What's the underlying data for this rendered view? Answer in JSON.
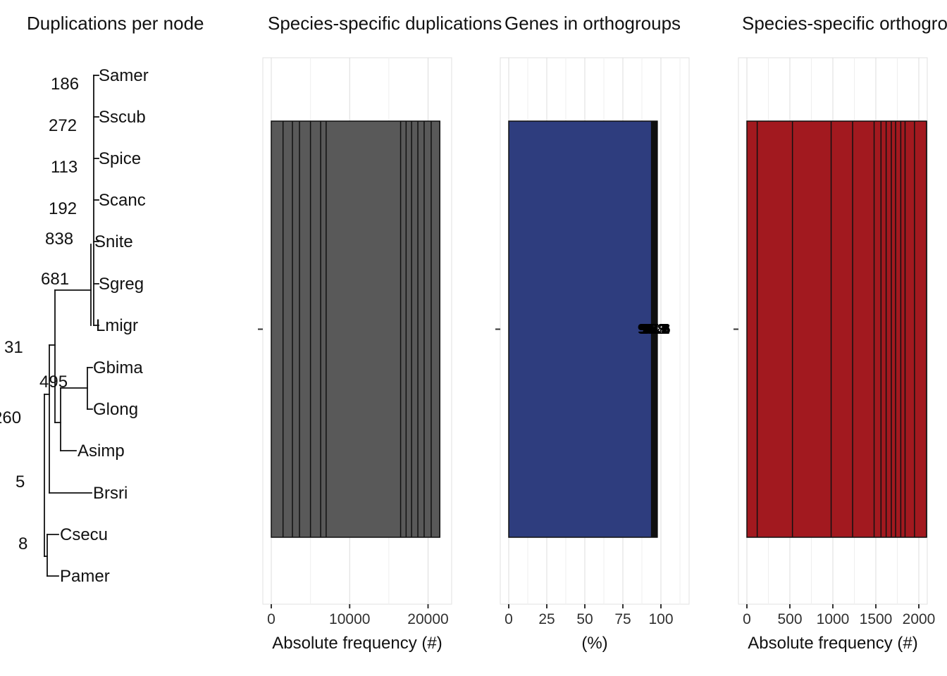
{
  "titles": [
    "Duplications per node",
    "Species-specific duplications",
    "Genes in orthogroups",
    "Species-specific orthogroups"
  ],
  "tree": {
    "species": [
      "Samer",
      "Sscub",
      "Spice",
      "Scanc",
      "Snite",
      "Sgreg",
      "Lmigr",
      "Gbima",
      "Glong",
      "Asimp",
      "Brsri",
      "Csecu",
      "Pamer"
    ],
    "node_labels": [
      "186",
      "272",
      "113",
      "192",
      "838",
      "681",
      "31",
      "495",
      "260",
      "5",
      "8"
    ]
  },
  "chart_data": [
    {
      "type": "tree",
      "title": "Duplications per node",
      "tips": [
        "Samer",
        "Sscub",
        "Spice",
        "Scanc",
        "Snite",
        "Sgreg",
        "Lmigr",
        "Gbima",
        "Glong",
        "Asimp",
        "Brsri",
        "Csecu",
        "Pamer"
      ],
      "node_values": [
        186,
        272,
        113,
        192,
        838,
        681,
        31,
        495,
        260,
        5,
        8
      ]
    },
    {
      "type": "bar",
      "orientation": "horizontal",
      "title": "Species-specific duplications",
      "categories": [
        "Samer",
        "Sscub",
        "Spice",
        "Scanc",
        "Snite",
        "Sgreg",
        "Lmigr",
        "Gbima",
        "Glong",
        "Asimp",
        "Brsri",
        "Csecu",
        "Pamer"
      ],
      "values": [
        2700,
        21500,
        1500,
        3600,
        17200,
        18700,
        16500,
        5000,
        19500,
        6300,
        7000,
        20400,
        17900
      ],
      "xlabel": "Absolute frequency (#)",
      "xticks": [
        0,
        10000,
        20000
      ],
      "xlim": [
        0,
        24000
      ],
      "grid": true,
      "legend": false,
      "bar_color": "#595959"
    },
    {
      "type": "bar",
      "orientation": "horizontal",
      "title": "Genes in orthogroups",
      "categories": [
        "Samer",
        "Sscub",
        "Spice",
        "Scanc",
        "Snite",
        "Sgreg",
        "Lmigr",
        "Gbima",
        "Glong",
        "Asimp",
        "Brsri",
        "Csecu",
        "Pamer"
      ],
      "values": [
        96.2,
        97.6,
        95.1,
        96.8,
        94.3,
        95.7,
        96.5,
        93.8,
        94.9,
        97.1,
        95.4,
        96.9,
        97.3
      ],
      "xlabel": "(%)",
      "xticks": [
        0,
        25,
        50,
        75,
        100
      ],
      "xlim": [
        0,
        117
      ],
      "grid": true,
      "legend": false,
      "value_labels": true,
      "bar_color": "#2e3d7e"
    },
    {
      "type": "bar",
      "orientation": "horizontal",
      "title": "Species-specific orthogroups",
      "categories": [
        "Samer",
        "Sscub",
        "Spice",
        "Scanc",
        "Snite",
        "Sgreg",
        "Lmigr",
        "Gbima",
        "Glong",
        "Asimp",
        "Brsri",
        "Csecu",
        "Pamer"
      ],
      "values": [
        120,
        2090,
        530,
        980,
        1730,
        1950,
        1840,
        1230,
        1480,
        1560,
        1620,
        1680,
        1790
      ],
      "xlabel": "Absolute frequency (#)",
      "xticks": [
        0,
        500,
        1000,
        1500,
        2000
      ],
      "xlim": [
        0,
        2150
      ],
      "grid": true,
      "legend": false,
      "bar_color": "#a2191f"
    }
  ]
}
